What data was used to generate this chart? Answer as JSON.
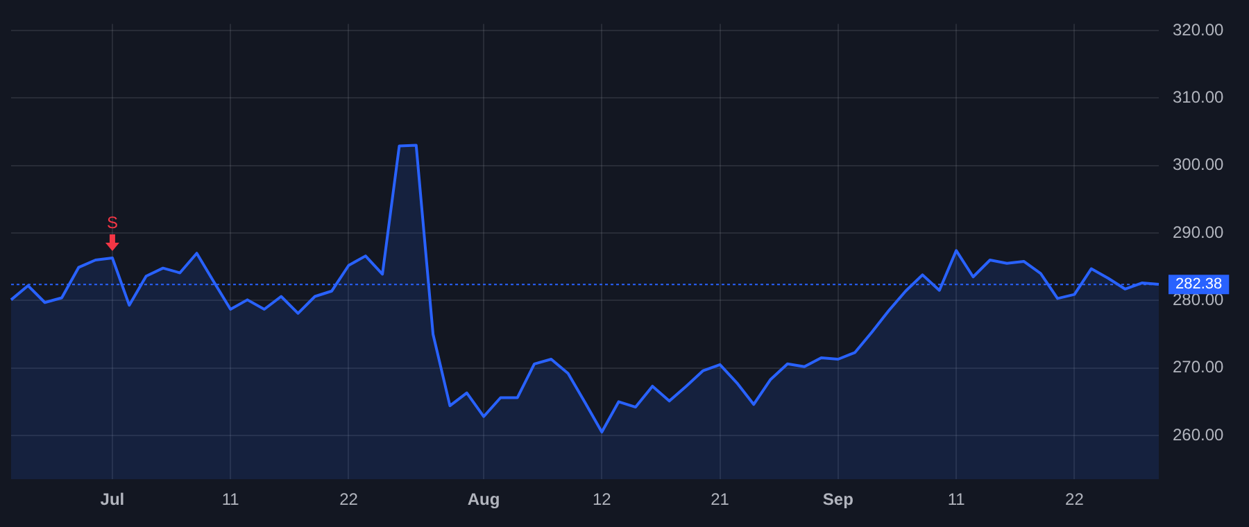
{
  "chart_data": {
    "type": "area",
    "categories": [
      null,
      null,
      null,
      null,
      null,
      null,
      "Jul",
      null,
      null,
      null,
      null,
      null,
      null,
      "11",
      null,
      null,
      null,
      null,
      null,
      null,
      "22",
      null,
      null,
      null,
      null,
      null,
      null,
      null,
      "Aug",
      null,
      null,
      null,
      null,
      null,
      null,
      "12",
      null,
      null,
      null,
      null,
      null,
      null,
      "21",
      null,
      null,
      null,
      null,
      null,
      null,
      "Sep",
      null,
      null,
      null,
      null,
      null,
      null,
      "11",
      null,
      null,
      null,
      null,
      null,
      null,
      "22",
      null,
      null,
      null,
      null,
      null
    ],
    "series": [
      {
        "color": "#2962ff",
        "values": [
          280.1,
          282.2,
          279.7,
          280.4,
          284.9,
          286.0,
          286.3,
          279.3,
          283.6,
          284.8,
          284.1,
          287.0,
          282.8,
          278.7,
          280.1,
          278.7,
          280.6,
          278.1,
          280.6,
          281.4,
          285.2,
          286.6,
          283.9,
          302.9,
          303.0,
          275.0,
          264.4,
          266.3,
          262.8,
          265.6,
          265.6,
          270.6,
          271.3,
          269.2,
          264.9,
          260.5,
          265.0,
          264.2,
          267.3,
          265.1,
          267.3,
          269.6,
          270.5,
          267.8,
          264.6,
          268.3,
          270.6,
          270.2,
          271.5,
          271.3,
          272.3,
          275.3,
          278.5,
          281.4,
          283.8,
          281.5,
          287.4,
          283.5,
          286.0,
          285.5,
          285.8,
          284.0,
          280.3,
          280.9,
          284.7,
          283.3,
          281.7,
          282.6,
          282.4
        ]
      }
    ],
    "ylim": [
      253.5,
      321
    ],
    "yticks": [
      {
        "value": 260,
        "label": "260.00"
      },
      {
        "value": 270,
        "label": "270.00"
      },
      {
        "value": 280,
        "label": "280.00"
      },
      {
        "value": 290,
        "label": "290.00"
      },
      {
        "value": 300,
        "label": "300.00"
      },
      {
        "value": 310,
        "label": "310.00"
      },
      {
        "value": 320,
        "label": "320.00"
      }
    ],
    "ref_lines": [
      {
        "axis": "y",
        "value": 282.38,
        "label": "282.38",
        "color": "#2962ff",
        "line_style": "dotted"
      }
    ],
    "annotations": [
      {
        "text": "S",
        "x": "Jul",
        "y": 286.3
      }
    ],
    "grid": true,
    "legend": false,
    "marker": "none",
    "line_style": "solid"
  }
}
